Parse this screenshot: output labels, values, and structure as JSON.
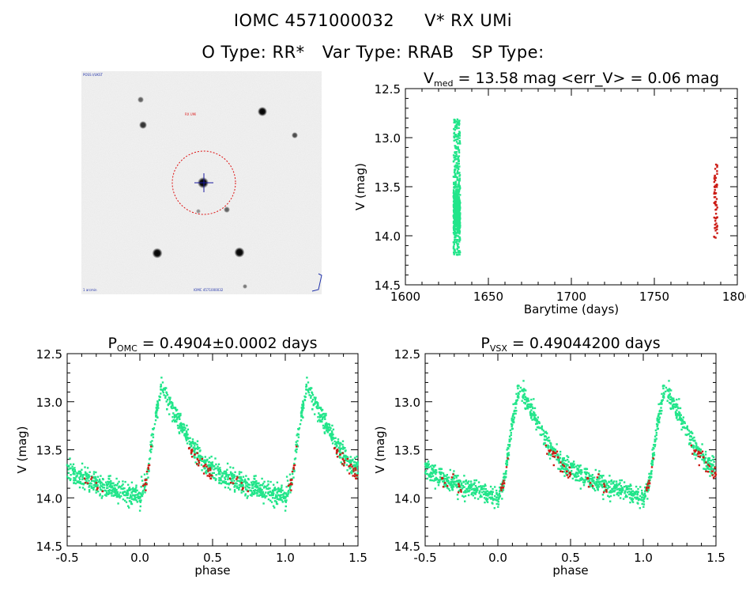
{
  "header": {
    "object_id": "IOMC 4571000032",
    "star_name": "V* RX UMi",
    "o_type": "O Type: RR*",
    "var_type": "Var Type: RRAB",
    "sp_type": "SP Type:"
  },
  "image_panel": {
    "corner_label_top": "POSS I/UKST",
    "marker_label": "RX UMi",
    "corner_label_bottom_left": "1 arcmin",
    "corner_label_bottom_center": "IOMC 4571000032"
  },
  "colors": {
    "omc_points": "#22e58a",
    "vsx_points": "#cc1d16",
    "image_background": "#f3f3f3",
    "circle_marker": "#dd1010",
    "cross_marker": "#1a1aa0"
  },
  "chart_data": [
    {
      "type": "scatter",
      "title": "V_med = 13.58 mag <err_V> = 0.06 mag",
      "title_parts": {
        "prefix": "V",
        "sub": "med",
        "rest": " = 13.58 mag <err_V> = 0.06 mag"
      },
      "xlabel": "Barytime (days)",
      "ylabel": "V (mag)",
      "xlim": [
        1600,
        1800
      ],
      "ylim": [
        14.5,
        12.5
      ],
      "y_inverted": true,
      "xticks": [
        1600,
        1650,
        1700,
        1750,
        1800
      ],
      "yticks": [
        12.5,
        13.0,
        13.5,
        14.0,
        14.5
      ],
      "ytick_labels": [
        "12.5",
        "13.0",
        "13.5",
        "14.0",
        "14.5"
      ],
      "series": [
        {
          "color": "#22e58a",
          "x_range": [
            1629,
            1633
          ],
          "y_range": [
            12.8,
            14.2
          ],
          "approx_points": 700
        },
        {
          "color": "#cc1d16",
          "x_range": [
            1786,
            1788
          ],
          "y_range": [
            13.26,
            14.03
          ],
          "approx_points": 60
        }
      ]
    },
    {
      "type": "scatter",
      "title": "P_OMC = 0.4904±0.0002 days",
      "title_parts": {
        "prefix": "P",
        "sub": "OMC",
        "rest": " = 0.4904±0.0002 days"
      },
      "xlabel": "phase",
      "ylabel": "V (mag)",
      "xlim": [
        -0.5,
        1.5
      ],
      "ylim": [
        14.5,
        12.5
      ],
      "y_inverted": true,
      "xticks": [
        -0.5,
        0.0,
        0.5,
        1.0,
        1.5
      ],
      "xtick_labels": [
        "-0.5",
        "0.0",
        "0.5",
        "1.0",
        "1.5"
      ],
      "yticks": [
        12.5,
        13.0,
        13.5,
        14.0,
        14.5
      ],
      "ytick_labels": [
        "12.5",
        "13.0",
        "13.5",
        "14.0",
        "14.5"
      ],
      "period_days": 0.4904,
      "period_error_days": 0.0002,
      "light_curve_template": {
        "phase": [
          0.0,
          0.05,
          0.1,
          0.15,
          0.25,
          0.35,
          0.45,
          0.55,
          0.65,
          0.75,
          0.85,
          0.95,
          1.0
        ],
        "mag": [
          14.0,
          13.8,
          13.2,
          12.85,
          13.15,
          13.45,
          13.65,
          13.75,
          13.82,
          13.88,
          13.92,
          13.97,
          14.0
        ]
      },
      "series": [
        {
          "color": "#22e58a",
          "approx_points": 700
        },
        {
          "color": "#cc1d16",
          "approx_points": 60
        }
      ]
    },
    {
      "type": "scatter",
      "title": "P_VSX = 0.49044200 days",
      "title_parts": {
        "prefix": "P",
        "sub": "VSX",
        "rest": " = 0.49044200 days"
      },
      "xlabel": "phase",
      "ylabel": "V (mag)",
      "xlim": [
        -0.5,
        1.5
      ],
      "ylim": [
        14.5,
        12.5
      ],
      "y_inverted": true,
      "xticks": [
        -0.5,
        0.0,
        0.5,
        1.0,
        1.5
      ],
      "xtick_labels": [
        "-0.5",
        "0.0",
        "0.5",
        "1.0",
        "1.5"
      ],
      "yticks": [
        12.5,
        13.0,
        13.5,
        14.0,
        14.5
      ],
      "ytick_labels": [
        "12.5",
        "13.0",
        "13.5",
        "14.0",
        "14.5"
      ],
      "period_days": 0.490442,
      "light_curve_template": {
        "phase": [
          0.0,
          0.05,
          0.1,
          0.15,
          0.25,
          0.35,
          0.45,
          0.55,
          0.65,
          0.75,
          0.85,
          0.95,
          1.0
        ],
        "mag": [
          14.0,
          13.8,
          13.2,
          12.85,
          13.15,
          13.45,
          13.65,
          13.75,
          13.82,
          13.88,
          13.92,
          13.97,
          14.0
        ]
      },
      "series": [
        {
          "color": "#22e58a",
          "approx_points": 700
        },
        {
          "color": "#cc1d16",
          "approx_points": 60
        }
      ]
    }
  ]
}
